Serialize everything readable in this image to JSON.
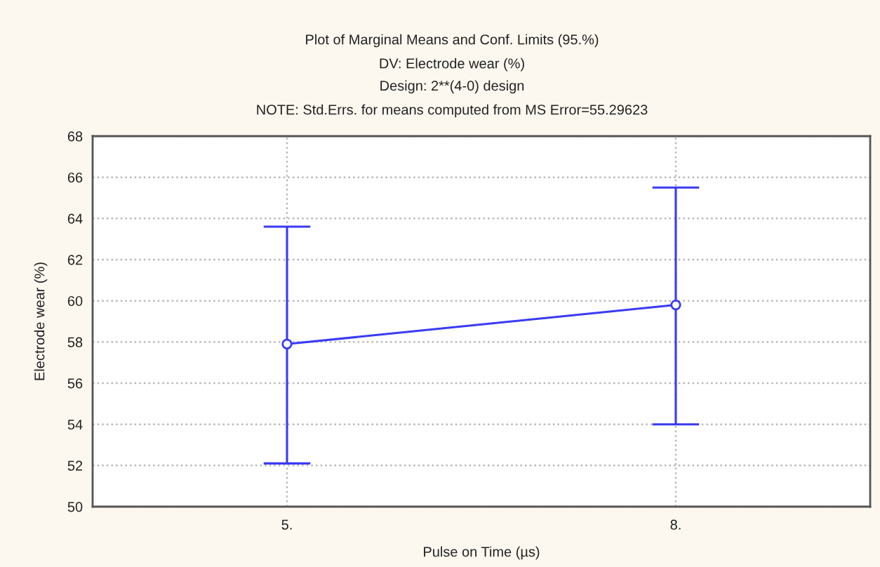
{
  "chart_data": {
    "type": "line",
    "title": "Plot of Marginal Means and Conf. Limits (95.%)",
    "subtitle": "DV: Electrode wear (%)\nDesign: 2**(4-0) design",
    "annotations": [
      "NOTE: Std.Errs. for means computed from MS Error=55.29623"
    ],
    "xlabel": "Pulse on Time (µs)",
    "ylabel": "Electrode wear (%)",
    "categories": [
      "5.",
      "8."
    ],
    "series": [
      {
        "color": "#3a3af5",
        "values": [
          57.9,
          59.8
        ],
        "errors": [
          [
            52.1,
            63.6
          ],
          [
            54.0,
            65.5
          ]
        ]
      }
    ],
    "ylim": [
      50,
      68
    ],
    "yticks": [
      50,
      52,
      54,
      56,
      58,
      60,
      62,
      64,
      66,
      68
    ],
    "grid": true,
    "marker": "circle",
    "line_style": "solid"
  }
}
